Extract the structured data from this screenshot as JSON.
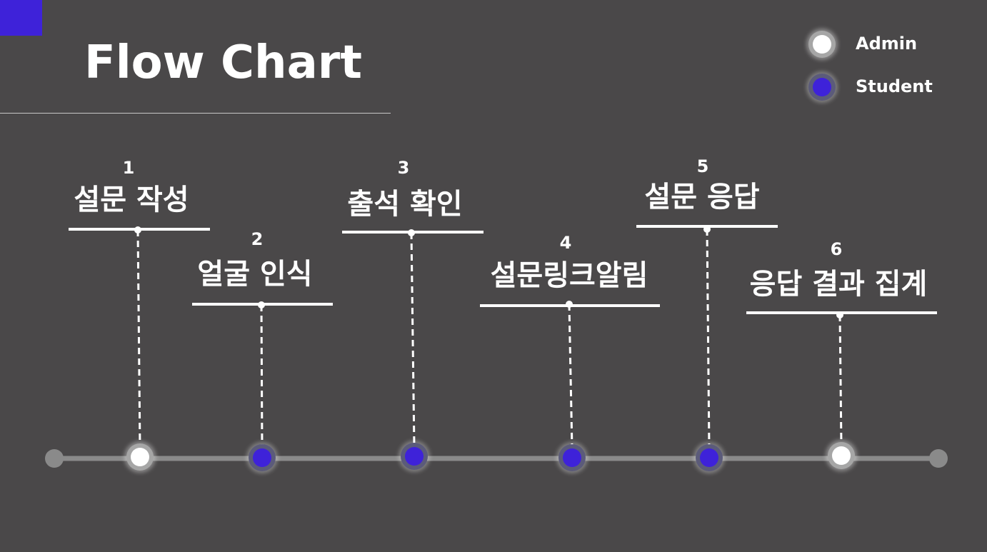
{
  "title": "Flow Chart",
  "colors": {
    "background": "#4a4849",
    "accent": "#3e22d9",
    "admin": "#ffffff",
    "student": "#3e22d9",
    "timeline": "#8a8a8a",
    "text": "#ffffff"
  },
  "legend": {
    "admin": "Admin",
    "student": "Student"
  },
  "steps": [
    {
      "number": "1",
      "label": "설문 작성",
      "role": "admin"
    },
    {
      "number": "2",
      "label": "얼굴 인식",
      "role": "student"
    },
    {
      "number": "3",
      "label": "출석 확인",
      "role": "student"
    },
    {
      "number": "4",
      "label": "설문링크알림",
      "role": "student"
    },
    {
      "number": "5",
      "label": "설문 응답",
      "role": "student"
    },
    {
      "number": "6",
      "label": "응답 결과 집계",
      "role": "admin"
    }
  ]
}
